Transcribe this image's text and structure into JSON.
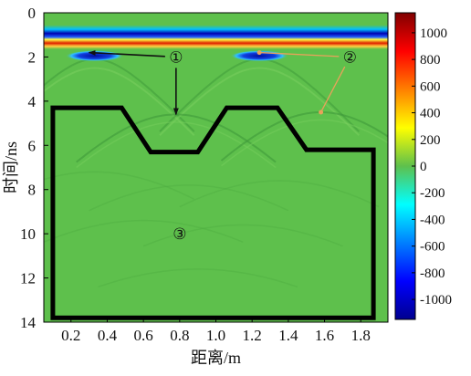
{
  "chart_data": {
    "type": "heatmap",
    "title": "",
    "xlabel": "距离/m",
    "ylabel": "时间/ns",
    "xlim": [
      0.05,
      1.95
    ],
    "ylim": [
      14,
      0
    ],
    "x_ticks": [
      "0.2",
      "0.4",
      "0.6",
      "0.8",
      "1.0",
      "1.2",
      "1.4",
      "1.6",
      "1.8"
    ],
    "y_ticks": [
      "0",
      "2",
      "4",
      "6",
      "8",
      "10",
      "12",
      "14"
    ],
    "colorbar": {
      "range": [
        -1150,
        1150
      ],
      "ticks": [
        "1000",
        "800",
        "600",
        "400",
        "200",
        "0",
        "-200",
        "-400",
        "-600",
        "-800",
        "-1000"
      ],
      "colormap": "jet"
    },
    "features": {
      "direct_wave_time": 1.1,
      "hyperbola_apexes": [
        {
          "x": 0.33,
          "t": 1.95,
          "value": -900
        },
        {
          "x": 1.24,
          "t": 1.95,
          "value": -900
        }
      ]
    },
    "outline": {
      "points": [
        [
          0.1,
          4.3
        ],
        [
          0.48,
          4.3
        ],
        [
          0.64,
          6.3
        ],
        [
          0.9,
          6.3
        ],
        [
          1.06,
          4.3
        ],
        [
          1.34,
          4.3
        ],
        [
          1.5,
          6.2
        ],
        [
          1.87,
          6.2
        ],
        [
          1.87,
          13.8
        ],
        [
          0.1,
          13.8
        ]
      ]
    },
    "annotations": [
      {
        "label": "①",
        "x": 0.78,
        "t": 2.0,
        "targets": [
          [
            0.3,
            1.8
          ],
          [
            0.78,
            4.6
          ]
        ]
      },
      {
        "label": "②",
        "x": 1.74,
        "t": 2.0,
        "targets": [
          [
            1.24,
            1.8
          ],
          [
            1.58,
            4.5
          ]
        ]
      },
      {
        "label": "③",
        "x": 0.8,
        "t": 10.0,
        "targets": []
      }
    ],
    "colors": {
      "background_green": "#5ec04c",
      "outline": "#000000",
      "arrow_1": "#111111",
      "arrow_2": "#e8a25a"
    }
  }
}
